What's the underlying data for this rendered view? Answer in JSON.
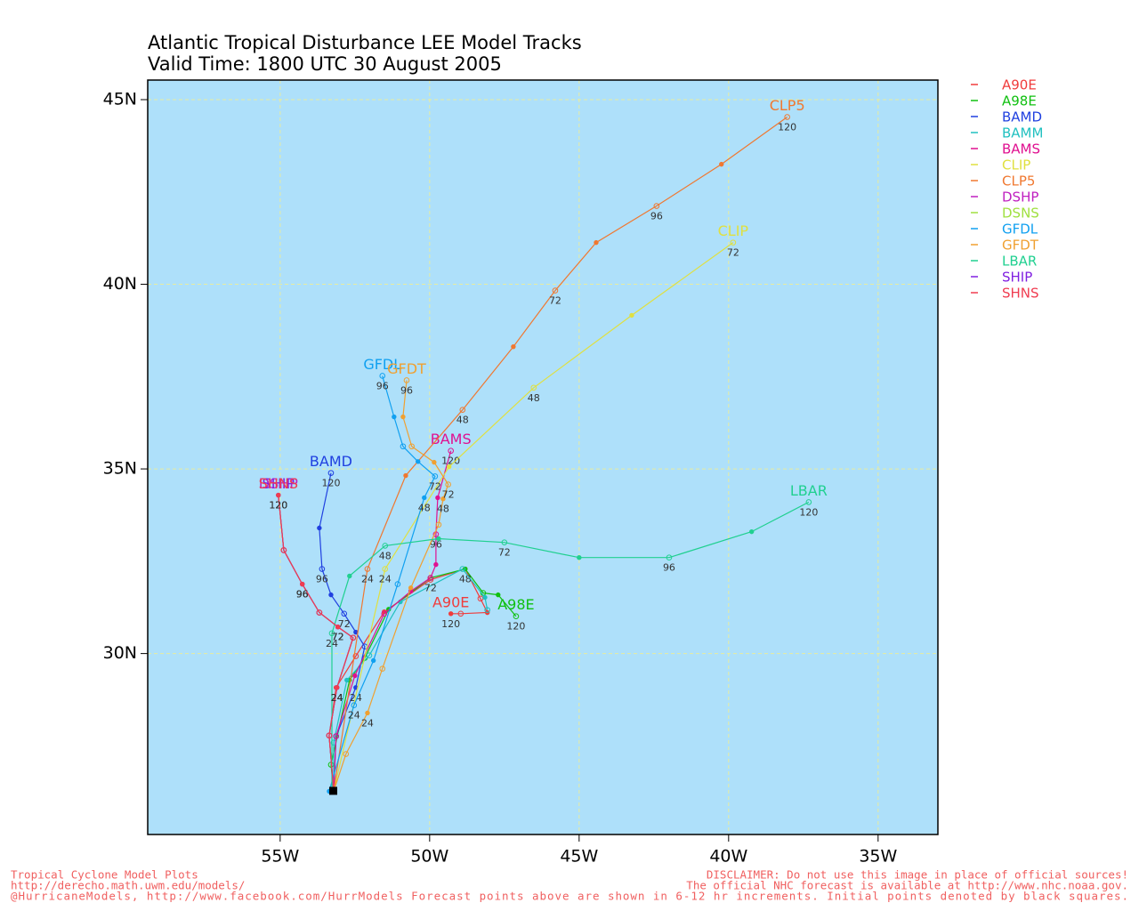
{
  "chart_data": {
    "type": "line",
    "title": "Atlantic Tropical Disturbance LEE Model Tracks",
    "subtitle": "Valid Time: 1800 UTC 30 August 2005",
    "xlim": [
      -59.43,
      -33.0
    ],
    "ylim": [
      25.1,
      45.53
    ],
    "xticks": [
      {
        "value": -55,
        "label": "55W"
      },
      {
        "value": -50,
        "label": "50W"
      },
      {
        "value": -45,
        "label": "45W"
      },
      {
        "value": -40,
        "label": "40W"
      },
      {
        "value": -35,
        "label": "35W"
      }
    ],
    "yticks": [
      {
        "value": 30,
        "label": "30N"
      },
      {
        "value": 35,
        "label": "35N"
      },
      {
        "value": 40,
        "label": "40N"
      },
      {
        "value": 45,
        "label": "45N"
      }
    ],
    "grid": true,
    "legend": "outside-right",
    "plot_color": "#aee0fa",
    "series": [
      {
        "name": "A90E",
        "color": "#f03c3c",
        "x": [
          -53.21,
          -53.36,
          -53.13,
          -52.47,
          -51.52,
          -49.97,
          -48.81,
          -48.3,
          -48.07,
          -48.96,
          -49.29
        ],
        "values": [
          26.27,
          27.78,
          29.08,
          29.93,
          31.13,
          32.0,
          32.29,
          31.49,
          31.11,
          31.08,
          31.08
        ],
        "point_labels": [
          null,
          null,
          null,
          null,
          null,
          null,
          null,
          null,
          null,
          null,
          120
        ]
      },
      {
        "name": "A98E",
        "color": "#10c010",
        "x": [
          -53.21,
          -53.3,
          -52.68,
          -52.17,
          -51.37,
          -49.97,
          -48.81,
          -48.21,
          -47.71,
          -47.11
        ],
        "values": [
          26.27,
          26.99,
          29.28,
          29.88,
          31.2,
          32.05,
          32.29,
          31.64,
          31.59,
          31.01
        ],
        "point_labels": [
          null,
          null,
          null,
          null,
          null,
          null,
          48,
          null,
          null,
          120
        ]
      },
      {
        "name": "BAMD",
        "color": "#2040e0",
        "x": [
          -53.21,
          -53.13,
          -52.47,
          -52.17,
          -52.47,
          -52.86,
          -53.3,
          -53.6,
          -53.69,
          -53.3
        ],
        "values": [
          26.27,
          27.76,
          29.08,
          30.19,
          30.58,
          31.08,
          31.59,
          32.29,
          33.4,
          34.89
        ],
        "point_labels": [
          null,
          null,
          24,
          null,
          null,
          72,
          null,
          96,
          null,
          120
        ]
      },
      {
        "name": "BAMM",
        "color": "#20c0c0",
        "show_name": false,
        "x": [
          -53.21,
          -53.21,
          -52.77,
          -52.02,
          -50.98,
          -48.9,
          -48.15,
          -48.07
        ],
        "values": [
          26.27,
          27.59,
          29.28,
          29.95,
          31.4,
          32.29,
          31.52,
          31.18
        ]
      },
      {
        "name": "BAMS",
        "color": "#e01090",
        "x": [
          -53.21,
          -53.13,
          -52.5,
          -51.52,
          -50.63,
          -49.97,
          -49.79,
          -49.79,
          -49.73,
          -49.29
        ],
        "values": [
          26.27,
          27.76,
          29.4,
          31.08,
          31.69,
          32.05,
          32.41,
          33.23,
          34.22,
          35.49
        ],
        "point_labels": [
          null,
          null,
          null,
          null,
          null,
          72,
          null,
          96,
          null,
          120
        ]
      },
      {
        "name": "CLIP",
        "color": "#e0e040",
        "x": [
          -53.21,
          -51.49,
          -49.35,
          -46.52,
          -43.24,
          -39.85
        ],
        "values": [
          26.27,
          32.29,
          35.06,
          37.2,
          39.16,
          41.13
        ],
        "point_labels": [
          null,
          24,
          null,
          48,
          null,
          72
        ]
      },
      {
        "name": "CLP5",
        "color": "#f07830",
        "x": [
          -53.21,
          -52.08,
          -50.8,
          -48.9,
          -47.2,
          -45.8,
          -44.43,
          -42.41,
          -40.24,
          -38.04
        ],
        "values": [
          26.27,
          32.29,
          34.82,
          36.6,
          38.31,
          39.83,
          41.13,
          42.12,
          43.25,
          44.53
        ],
        "point_labels": [
          null,
          24,
          null,
          48,
          null,
          72,
          null,
          96,
          null,
          120
        ]
      },
      {
        "name": "DSHP",
        "color": "#c020c0",
        "x": [
          -53.21,
          -53.36,
          -53.1,
          -52.56,
          -53.07,
          -53.69,
          -54.26,
          -54.88,
          -55.06
        ],
        "values": [
          26.27,
          27.78,
          29.08,
          30.43,
          30.72,
          31.11,
          31.88,
          32.8,
          34.29
        ],
        "point_labels": [
          null,
          null,
          24,
          null,
          72,
          null,
          96,
          null,
          120
        ]
      },
      {
        "name": "DSNS",
        "color": "#a0e040",
        "show_name": false,
        "x": [
          -53.21,
          -53.36,
          -53.1,
          -52.56,
          -53.07,
          -53.69,
          -54.26,
          -54.88,
          -55.06
        ],
        "values": [
          26.27,
          27.78,
          29.08,
          30.43,
          30.72,
          31.11,
          31.88,
          32.8,
          34.29
        ]
      },
      {
        "name": "GFDL",
        "color": "#10a0f0",
        "x": [
          -53.36,
          -52.53,
          -51.88,
          -51.07,
          -50.18,
          -49.82,
          -50.39,
          -50.89,
          -51.19,
          -51.58
        ],
        "values": [
          26.27,
          28.6,
          29.81,
          31.88,
          34.22,
          34.8,
          35.2,
          35.61,
          36.41,
          37.52
        ],
        "point_labels": [
          null,
          24,
          null,
          null,
          48,
          72,
          null,
          null,
          null,
          96
        ]
      },
      {
        "name": "GFDT",
        "color": "#f0a030",
        "x": [
          -53.21,
          -52.8,
          -52.08,
          -51.58,
          -50.63,
          -49.7,
          -49.55,
          -49.38,
          -49.85,
          -50.6,
          -50.89,
          -50.77
        ],
        "values": [
          26.27,
          27.28,
          28.39,
          29.59,
          31.78,
          33.49,
          34.19,
          34.58,
          35.18,
          35.61,
          36.41,
          37.4
        ],
        "point_labels": [
          null,
          null,
          24,
          null,
          null,
          null,
          48,
          72,
          null,
          null,
          null,
          96
        ]
      },
      {
        "name": "LBAR",
        "color": "#20d090",
        "x": [
          -53.27,
          -53.27,
          -52.68,
          -51.49,
          -49.7,
          -47.5,
          -45.0,
          -41.99,
          -39.23,
          -37.32
        ],
        "values": [
          26.27,
          30.55,
          32.1,
          32.92,
          33.11,
          33.01,
          32.6,
          32.6,
          33.3,
          34.1
        ],
        "point_labels": [
          null,
          24,
          null,
          48,
          null,
          72,
          null,
          96,
          null,
          120
        ]
      },
      {
        "name": "SHIP",
        "color": "#8020e0",
        "x": [
          -53.21,
          -53.36,
          -53.1,
          -52.56,
          -53.07,
          -53.69,
          -54.26,
          -54.88,
          -55.06
        ],
        "values": [
          26.27,
          27.78,
          29.08,
          30.43,
          30.72,
          31.11,
          31.88,
          32.8,
          34.29
        ],
        "point_labels": [
          null,
          null,
          24,
          null,
          72,
          null,
          96,
          null,
          120
        ]
      },
      {
        "name": "SHNS",
        "color": "#f03c50",
        "x": [
          -53.21,
          -53.36,
          -53.1,
          -52.56,
          -53.07,
          -53.69,
          -54.26,
          -54.88,
          -55.06
        ],
        "values": [
          26.27,
          27.78,
          29.08,
          30.43,
          30.72,
          31.11,
          31.88,
          32.8,
          34.29
        ],
        "point_labels": [
          null,
          null,
          24,
          null,
          72,
          null,
          96,
          null,
          120
        ]
      }
    ]
  },
  "footer": {
    "left": [
      "Tropical Cyclone Model Plots",
      "http://derecho.math.uwm.edu/models/",
      "@HurricaneModels, http://www.facebook.com/HurrModels  Forecast points above are shown in 6-12 hr increments. Initial points denoted by black squares."
    ],
    "right": [
      "DISCLAIMER: Do not use this image in place of official sources!",
      "The official NHC forecast is available at http://www.nhc.noaa.gov."
    ]
  }
}
